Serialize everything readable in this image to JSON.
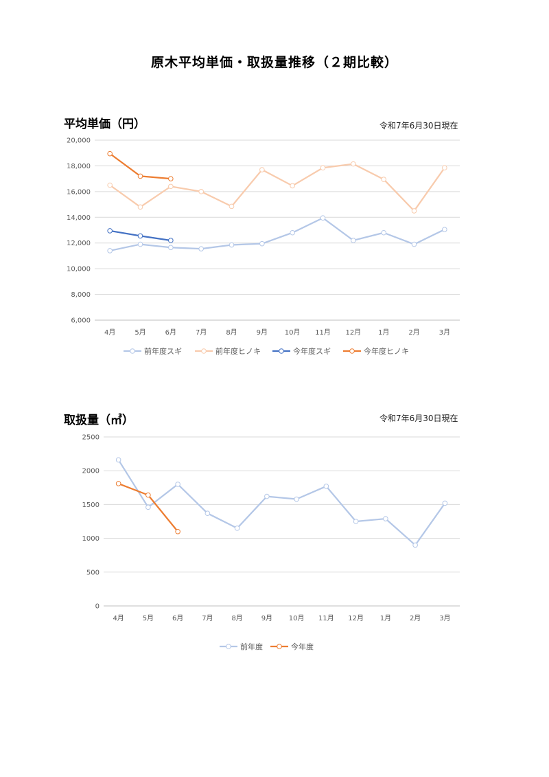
{
  "page": {
    "title": "原木平均単価・取扱量推移（２期比較）"
  },
  "chart_data": [
    {
      "type": "line",
      "title": "平均単価（円）",
      "note": "令和7年6月30日現在",
      "categories": [
        "4月",
        "5月",
        "6月",
        "7月",
        "8月",
        "9月",
        "10月",
        "11月",
        "12月",
        "1月",
        "2月",
        "3月"
      ],
      "ylim": [
        6000,
        20000
      ],
      "yticks": [
        6000,
        8000,
        10000,
        12000,
        14000,
        16000,
        18000,
        20000
      ],
      "ytick_labels": [
        "6,000",
        "8,000",
        "10,000",
        "12,000",
        "14,000",
        "16,000",
        "18,000",
        "20,000"
      ],
      "grid": true,
      "legend": "bottom",
      "series": [
        {
          "name": "前年度スギ",
          "color": "#b4c7e7",
          "values": [
            11400,
            11900,
            11650,
            11550,
            11850,
            11950,
            12800,
            13950,
            12200,
            12800,
            11900,
            13050
          ]
        },
        {
          "name": "前年度ヒノキ",
          "color": "#f8cbad",
          "values": [
            16500,
            14800,
            16400,
            16000,
            14850,
            17700,
            16450,
            17850,
            18150,
            16950,
            14500,
            17850
          ]
        },
        {
          "name": "今年度スギ",
          "color": "#4472c4",
          "values": [
            12950,
            12550,
            12200,
            null,
            null,
            null,
            null,
            null,
            null,
            null,
            null,
            null
          ]
        },
        {
          "name": "今年度ヒノキ",
          "color": "#ed7d31",
          "values": [
            18950,
            17200,
            17000,
            null,
            null,
            null,
            null,
            null,
            null,
            null,
            null,
            null
          ]
        }
      ]
    },
    {
      "type": "line",
      "title": "取扱量（㎥）",
      "note": "令和7年6月30日現在",
      "categories": [
        "4月",
        "5月",
        "6月",
        "7月",
        "8月",
        "9月",
        "10月",
        "11月",
        "12月",
        "1月",
        "2月",
        "3月"
      ],
      "ylim": [
        0,
        2500
      ],
      "yticks": [
        0,
        500,
        1000,
        1500,
        2000,
        2500
      ],
      "ytick_labels": [
        "0",
        "500",
        "1000",
        "1500",
        "2000",
        "2500"
      ],
      "grid": true,
      "legend": "bottom",
      "series": [
        {
          "name": "前年度",
          "color": "#b4c7e7",
          "values": [
            2160,
            1460,
            1800,
            1370,
            1150,
            1620,
            1580,
            1770,
            1250,
            1290,
            900,
            1520
          ]
        },
        {
          "name": "今年度",
          "color": "#ed7d31",
          "values": [
            1810,
            1640,
            1100,
            null,
            null,
            null,
            null,
            null,
            null,
            null,
            null,
            null
          ]
        }
      ]
    }
  ]
}
